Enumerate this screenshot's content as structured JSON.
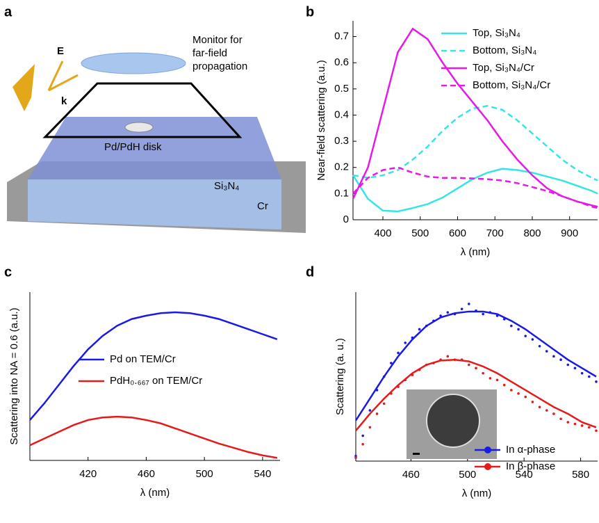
{
  "panel_labels": [
    "a",
    "b",
    "c",
    "d"
  ],
  "illustration": {
    "field": "E",
    "wavevector": "k",
    "monitor": [
      "Monitor for",
      "far-field",
      "propagation"
    ],
    "disk": "Pd/PdH disk",
    "film": "Si₃N₄",
    "substrate": "Cr"
  },
  "chart_data": [
    {
      "type": "line",
      "xlabel": "λ (nm)",
      "ylabel": "Near-field scattering (a.u.)",
      "xlim": [
        320,
        975
      ],
      "ylim": [
        0,
        0.76
      ],
      "xticks": [
        400,
        500,
        600,
        700,
        800,
        900
      ],
      "yticks": [
        0,
        0.1,
        0.2,
        0.3,
        0.4,
        0.5,
        0.6,
        0.7
      ],
      "x": [
        320,
        360,
        400,
        440,
        480,
        520,
        560,
        600,
        640,
        680,
        720,
        760,
        800,
        840,
        880,
        920,
        960,
        975
      ],
      "series": [
        {
          "name": "Top, Si₃N₄",
          "color": "#33e6e6",
          "dash": false,
          "values": [
            0.17,
            0.08,
            0.035,
            0.032,
            0.045,
            0.06,
            0.085,
            0.12,
            0.155,
            0.18,
            0.195,
            0.19,
            0.18,
            0.165,
            0.15,
            0.13,
            0.11,
            0.1
          ]
        },
        {
          "name": "Bottom, Si₃N₄",
          "color": "#33e6e6",
          "dash": true,
          "values": [
            0.17,
            0.16,
            0.17,
            0.19,
            0.23,
            0.28,
            0.34,
            0.39,
            0.425,
            0.435,
            0.42,
            0.38,
            0.33,
            0.28,
            0.23,
            0.19,
            0.16,
            0.15
          ]
        },
        {
          "name": "Top, Si₃N₄/Cr",
          "color": "#e619e6",
          "dash": false,
          "values": [
            0.08,
            0.2,
            0.42,
            0.64,
            0.73,
            0.69,
            0.6,
            0.52,
            0.45,
            0.38,
            0.3,
            0.23,
            0.17,
            0.12,
            0.09,
            0.07,
            0.055,
            0.05
          ]
        },
        {
          "name": "Bottom, Si₃N₄/Cr",
          "color": "#e619e6",
          "dash": true,
          "values": [
            0.1,
            0.16,
            0.19,
            0.2,
            0.18,
            0.165,
            0.16,
            0.16,
            0.158,
            0.155,
            0.15,
            0.14,
            0.125,
            0.11,
            0.09,
            0.07,
            0.05,
            0.045
          ]
        }
      ]
    },
    {
      "type": "line",
      "xlabel": "λ (nm)",
      "ylabel": "Scattering into NA = 0.6 (a.u.)",
      "xlim": [
        380,
        552
      ],
      "ylim": [
        0,
        1
      ],
      "xticks": [
        420,
        460,
        500,
        540
      ],
      "x": [
        380,
        390,
        400,
        410,
        420,
        430,
        440,
        450,
        460,
        470,
        480,
        490,
        500,
        510,
        520,
        530,
        540,
        550
      ],
      "series": [
        {
          "name": "Pd on TEM/Cr",
          "color": "#1a1ae6",
          "dash": false,
          "values": [
            0.24,
            0.34,
            0.45,
            0.56,
            0.66,
            0.74,
            0.8,
            0.84,
            0.86,
            0.875,
            0.88,
            0.875,
            0.86,
            0.84,
            0.81,
            0.78,
            0.75,
            0.72
          ]
        },
        {
          "name": "PdH₀.₆₆₇ on TEM/Cr",
          "color": "#e61a1a",
          "dash": false,
          "values": [
            0.09,
            0.13,
            0.17,
            0.21,
            0.24,
            0.255,
            0.26,
            0.255,
            0.24,
            0.22,
            0.19,
            0.16,
            0.13,
            0.1,
            0.075,
            0.05,
            0.03,
            0.015
          ]
        }
      ]
    },
    {
      "type": "scatter",
      "xlabel": "λ (nm)",
      "ylabel": "Scattering (a. u.)",
      "xlim": [
        421,
        592
      ],
      "ylim": [
        0,
        1
      ],
      "xticks": [
        460,
        500,
        540,
        580
      ],
      "series": [
        {
          "name": "In α-phase",
          "color": "#1a1ae6",
          "x": [
            421,
            426,
            431,
            436,
            441,
            446,
            451,
            456,
            461,
            466,
            471,
            476,
            481,
            486,
            491,
            496,
            501,
            506,
            511,
            516,
            521,
            526,
            531,
            536,
            541,
            546,
            551,
            556,
            561,
            566,
            571,
            576,
            581,
            586,
            591
          ],
          "values": [
            0.03,
            0.15,
            0.3,
            0.42,
            0.5,
            0.58,
            0.64,
            0.7,
            0.73,
            0.78,
            0.8,
            0.83,
            0.86,
            0.88,
            0.87,
            0.9,
            0.93,
            0.89,
            0.87,
            0.88,
            0.86,
            0.84,
            0.8,
            0.78,
            0.74,
            0.72,
            0.68,
            0.65,
            0.62,
            0.6,
            0.57,
            0.55,
            0.52,
            0.5,
            0.47
          ],
          "fit_x": [
            421,
            431,
            441,
            451,
            461,
            471,
            481,
            491,
            501,
            511,
            521,
            531,
            541,
            551,
            561,
            571,
            581,
            591
          ],
          "fit_values": [
            0.24,
            0.37,
            0.5,
            0.62,
            0.72,
            0.8,
            0.85,
            0.875,
            0.885,
            0.885,
            0.87,
            0.83,
            0.78,
            0.72,
            0.66,
            0.6,
            0.55,
            0.5
          ]
        },
        {
          "name": "In β-phase",
          "color": "#e61a1a",
          "x": [
            421,
            426,
            431,
            436,
            441,
            446,
            451,
            456,
            461,
            466,
            471,
            476,
            481,
            486,
            491,
            496,
            501,
            506,
            511,
            516,
            521,
            526,
            531,
            536,
            541,
            546,
            551,
            556,
            561,
            566,
            571,
            576,
            581,
            586,
            591
          ],
          "values": [
            0.02,
            0.1,
            0.2,
            0.28,
            0.34,
            0.4,
            0.44,
            0.48,
            0.51,
            0.54,
            0.57,
            0.58,
            0.6,
            0.62,
            0.6,
            0.6,
            0.57,
            0.55,
            0.52,
            0.49,
            0.48,
            0.45,
            0.42,
            0.4,
            0.38,
            0.35,
            0.32,
            0.3,
            0.28,
            0.25,
            0.23,
            0.22,
            0.21,
            0.2,
            0.18
          ],
          "fit_x": [
            421,
            431,
            441,
            451,
            461,
            471,
            481,
            491,
            501,
            511,
            521,
            531,
            541,
            551,
            561,
            571,
            581,
            591
          ],
          "fit_values": [
            0.18,
            0.28,
            0.37,
            0.45,
            0.52,
            0.57,
            0.595,
            0.6,
            0.59,
            0.56,
            0.52,
            0.47,
            0.42,
            0.37,
            0.32,
            0.28,
            0.23,
            0.2
          ]
        }
      ]
    }
  ]
}
